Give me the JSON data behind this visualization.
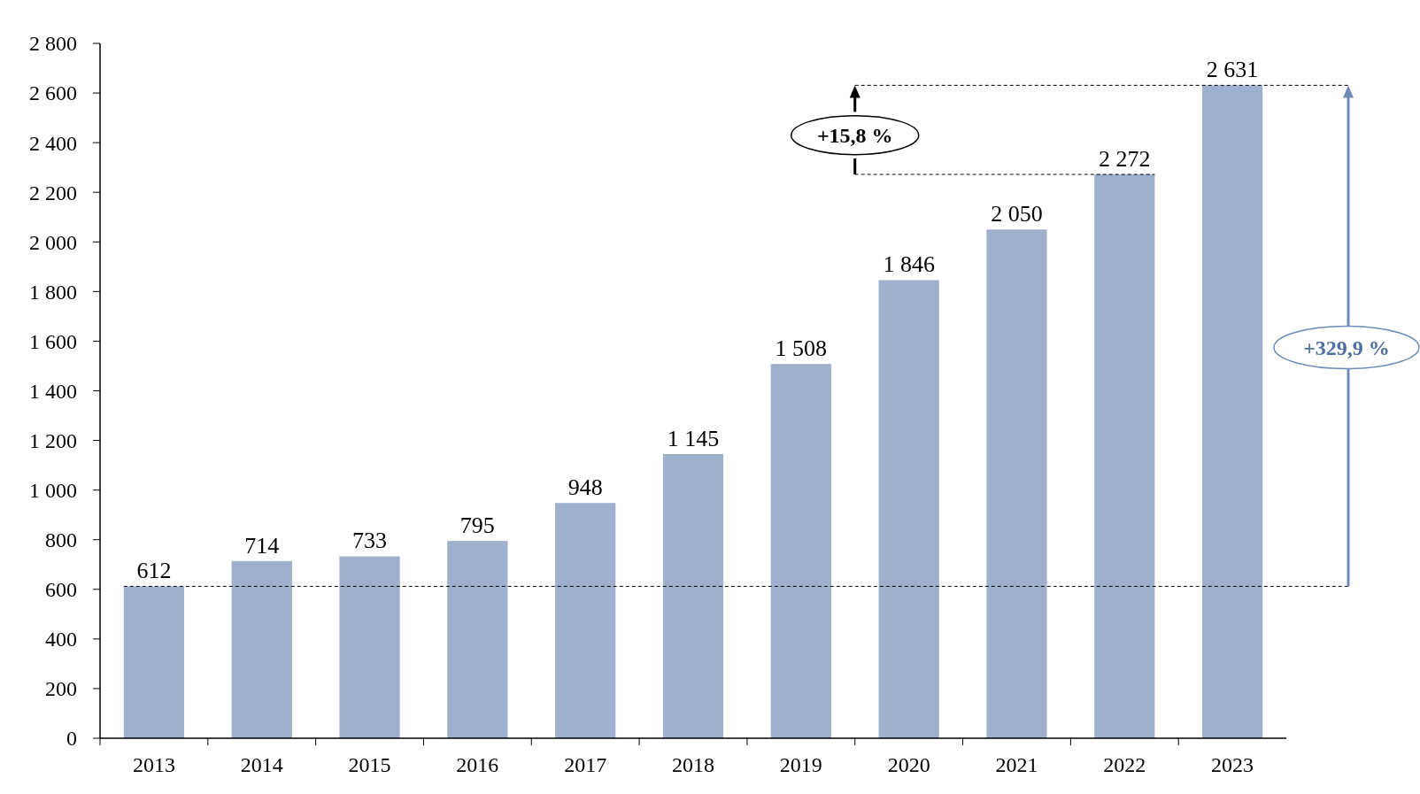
{
  "chart_data": {
    "type": "bar",
    "categories": [
      "2013",
      "2014",
      "2015",
      "2016",
      "2017",
      "2018",
      "2019",
      "2020",
      "2021",
      "2022",
      "2023"
    ],
    "values": [
      612,
      714,
      733,
      795,
      948,
      1145,
      1508,
      1846,
      2050,
      2272,
      2631
    ],
    "color": "#9eb0ce",
    "ylim": [
      0,
      2800
    ],
    "yticks": [
      {
        "value": 0,
        "label": "0"
      },
      {
        "value": 200,
        "label": "200"
      },
      {
        "value": 400,
        "label": "400"
      },
      {
        "value": 600,
        "label": "600"
      },
      {
        "value": 800,
        "label": "800"
      },
      {
        "value": 1000,
        "label": "1 000"
      },
      {
        "value": 1200,
        "label": "1 200"
      },
      {
        "value": 1400,
        "label": "1 400"
      },
      {
        "value": 1600,
        "label": "1 600"
      },
      {
        "value": 1800,
        "label": "1 800"
      },
      {
        "value": 2000,
        "label": "2 000"
      },
      {
        "value": 2200,
        "label": "2 200"
      },
      {
        "value": 2400,
        "label": "2 400"
      },
      {
        "value": 2600,
        "label": "2 600"
      },
      {
        "value": 2800,
        "label": "2 800"
      }
    ],
    "value_labels": [
      "612",
      "714",
      "733",
      "795",
      "948",
      "1 145",
      "1 508",
      "1 846",
      "2 050",
      "2 272",
      "2 631"
    ],
    "ref_lines": [
      {
        "axis": "y",
        "value": 612,
        "line_style": "dashed",
        "color": "#000000"
      },
      {
        "axis": "y",
        "value": 2272,
        "line_style": "dashed",
        "color": "#000000"
      },
      {
        "axis": "y",
        "value": 2631,
        "line_style": "dashed",
        "color": "#000000"
      }
    ],
    "annotations": [
      "+15,8 %",
      "+329,9 %"
    ],
    "grid": false
  }
}
